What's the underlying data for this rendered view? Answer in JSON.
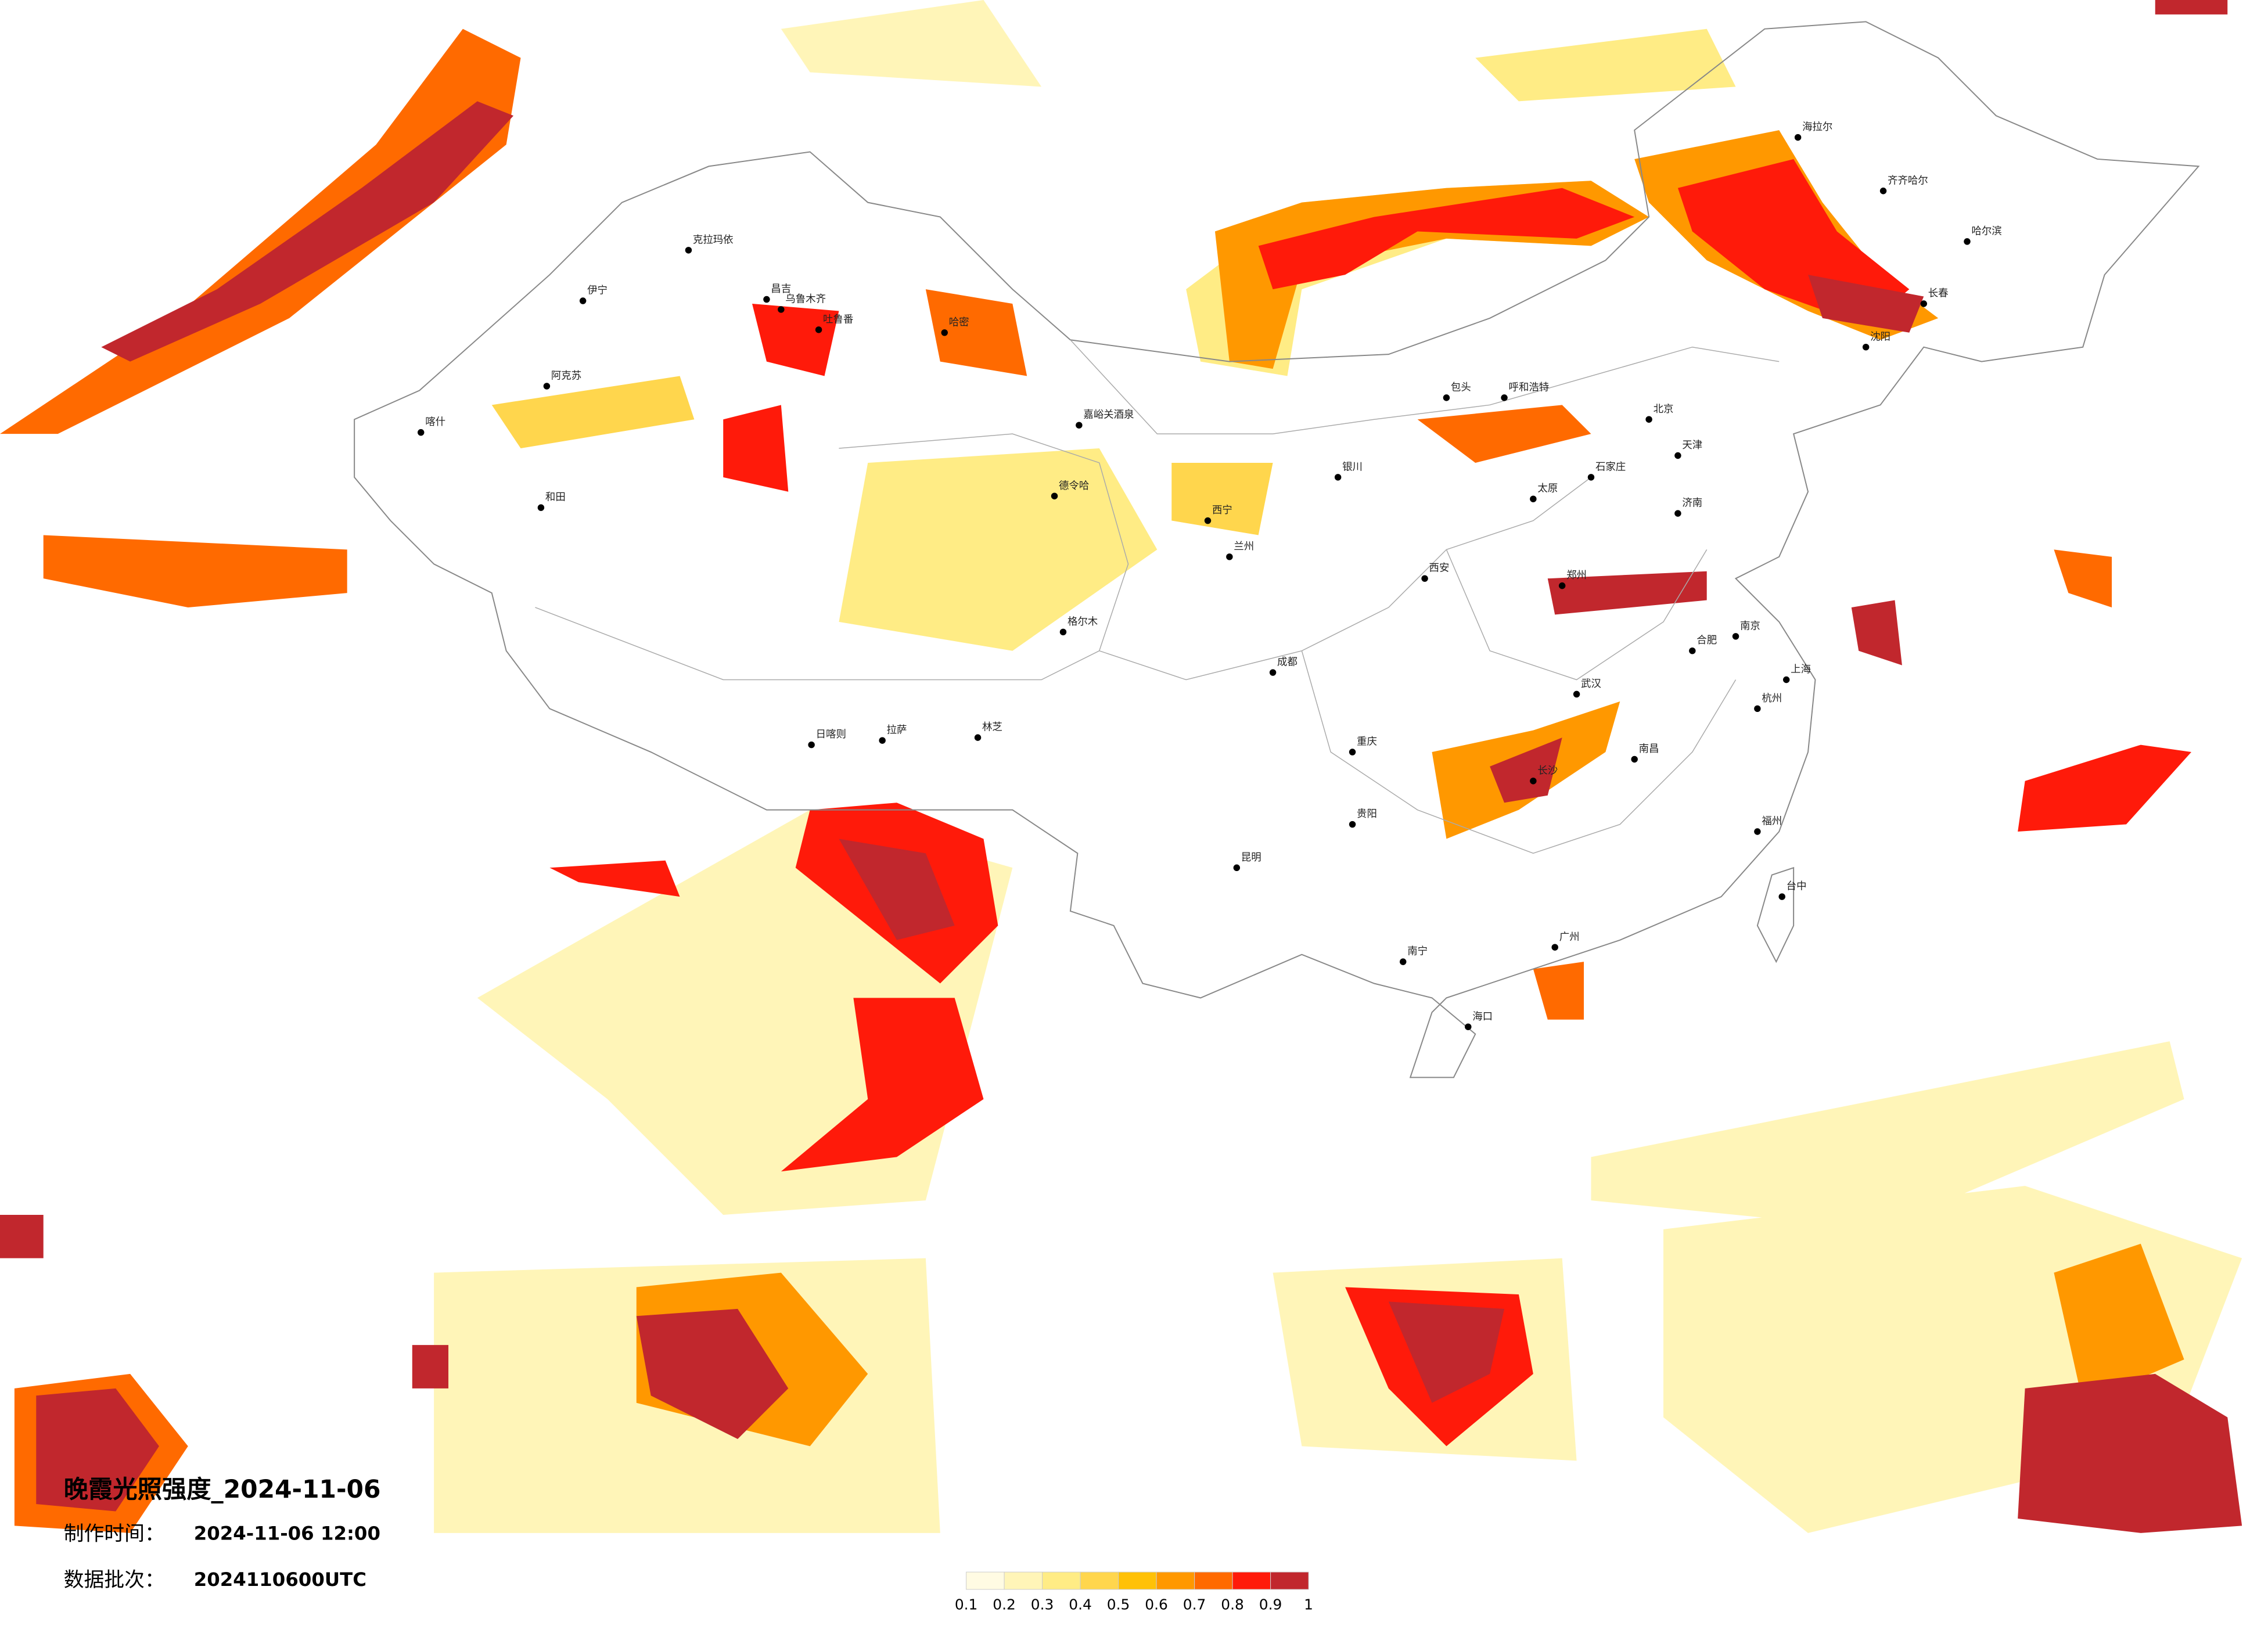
{
  "title": "晚霞光照强度_2024-11-06",
  "made_label": "制作时间：",
  "made_time": "2024-11-06 12:00",
  "batch_label": "数据批次：",
  "batch": "2024110600UTC",
  "legend": {
    "ticks": [
      0.1,
      0.2,
      0.3,
      0.4,
      0.5,
      0.6,
      0.7,
      0.8,
      0.9,
      1
    ],
    "colors": [
      "#fffbe3",
      "#fff5b8",
      "#ffec85",
      "#ffd64d",
      "#ffc107",
      "#ff9800",
      "#ff6a00",
      "#ff1a0a",
      "#c1272d"
    ]
  },
  "cities": [
    "克拉玛依",
    "伊宁",
    "昌吉",
    "乌鲁木齐",
    "吐鲁番",
    "阿克苏",
    "喀什",
    "和田",
    "哈密",
    "嘉峪关酒泉",
    "德令哈",
    "格尔木",
    "拉萨",
    "日喀则",
    "林芝",
    "海拉尔",
    "齐齐哈尔",
    "哈尔滨",
    "长春",
    "沈阳",
    "北京",
    "天津",
    "石家庄",
    "太原",
    "呼和浩特",
    "包头",
    "银川",
    "兰州",
    "西宁",
    "西安",
    "郑州",
    "济南",
    "南京",
    "上海",
    "杭州",
    "合肥",
    "武汉",
    "长沙",
    "南昌",
    "福州",
    "广州",
    "南宁",
    "海口",
    "贵阳",
    "昆明",
    "成都",
    "重庆",
    "台中"
  ]
}
